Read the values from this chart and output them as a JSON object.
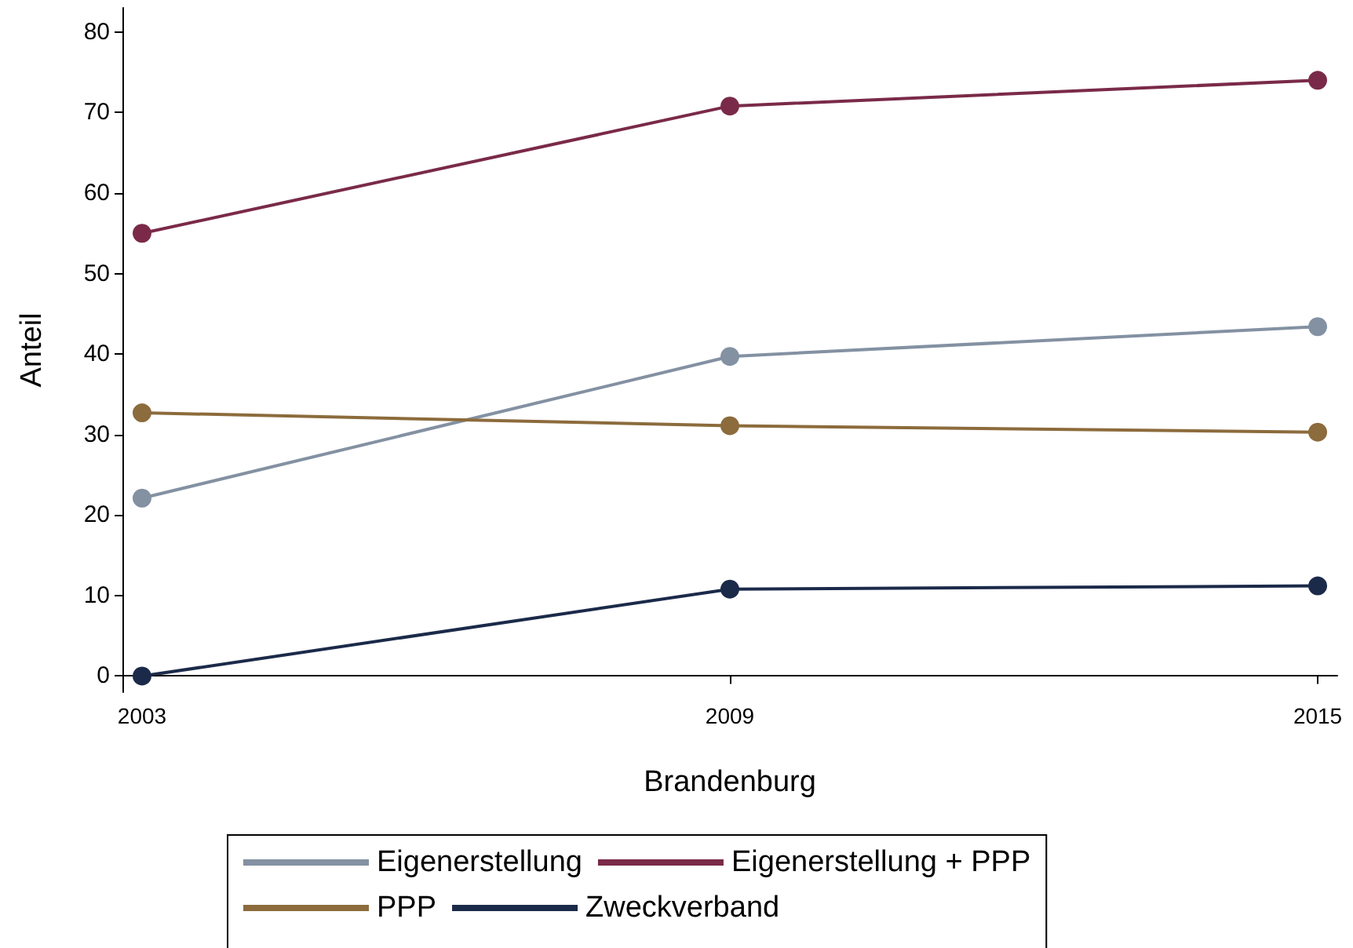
{
  "chart_data": {
    "type": "line",
    "xlabel": "Brandenburg",
    "ylabel": "Anteil",
    "x": [
      2003,
      2009,
      2015
    ],
    "xlim": [
      2002.8,
      2015.2
    ],
    "xticks": [
      2003,
      2009,
      2015
    ],
    "ylim": [
      -2,
      83
    ],
    "yticks": [
      0,
      10,
      20,
      30,
      40,
      50,
      60,
      70,
      80
    ],
    "series": [
      {
        "name": "Eigenerstellung",
        "color": "#8391a2",
        "values": [
          22.1,
          39.7,
          43.4
        ]
      },
      {
        "name": "Eigenerstellung + PPP",
        "color": "#7a2a48",
        "values": [
          55.0,
          70.8,
          74.0
        ]
      },
      {
        "name": "PPP",
        "color": "#8c6b3c",
        "values": [
          32.7,
          31.1,
          30.3
        ]
      },
      {
        "name": "Zweckverband",
        "color": "#1b2a49",
        "values": [
          0,
          10.8,
          11.2
        ]
      }
    ],
    "marker": "circle",
    "line_style": "solid",
    "grid": false,
    "legend": "bottom"
  }
}
